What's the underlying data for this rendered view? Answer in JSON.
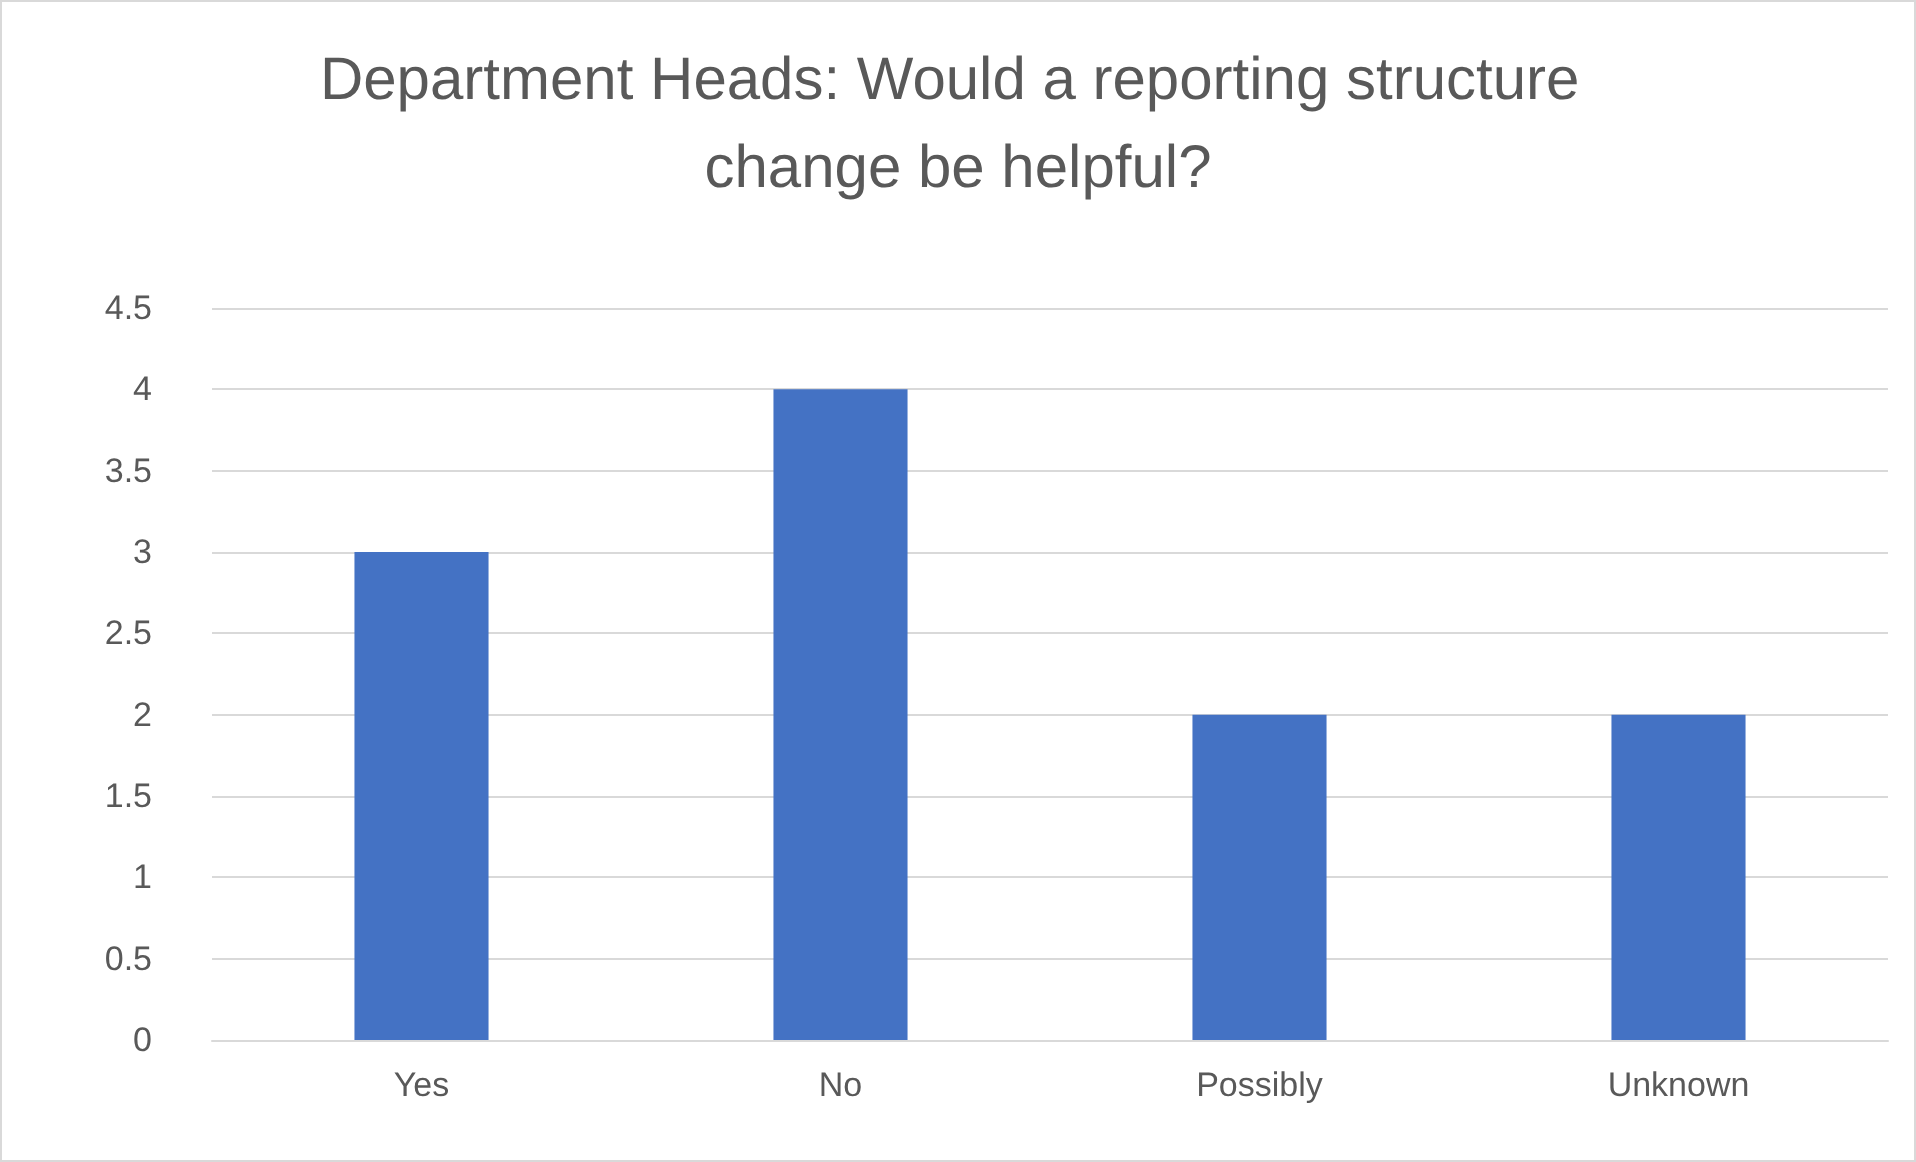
{
  "chart_data": {
    "type": "bar",
    "title": "Department Heads: Would a reporting structure change be helpful?",
    "categories": [
      "Yes",
      "No",
      "Possibly",
      "Unknown"
    ],
    "values": [
      3,
      4,
      2,
      2
    ],
    "color": "#4472c4",
    "ylim": [
      0,
      4.5
    ],
    "yticks": [
      0,
      0.5,
      1,
      1.5,
      2,
      2.5,
      3,
      3.5,
      4,
      4.5
    ],
    "grid": "y"
  }
}
